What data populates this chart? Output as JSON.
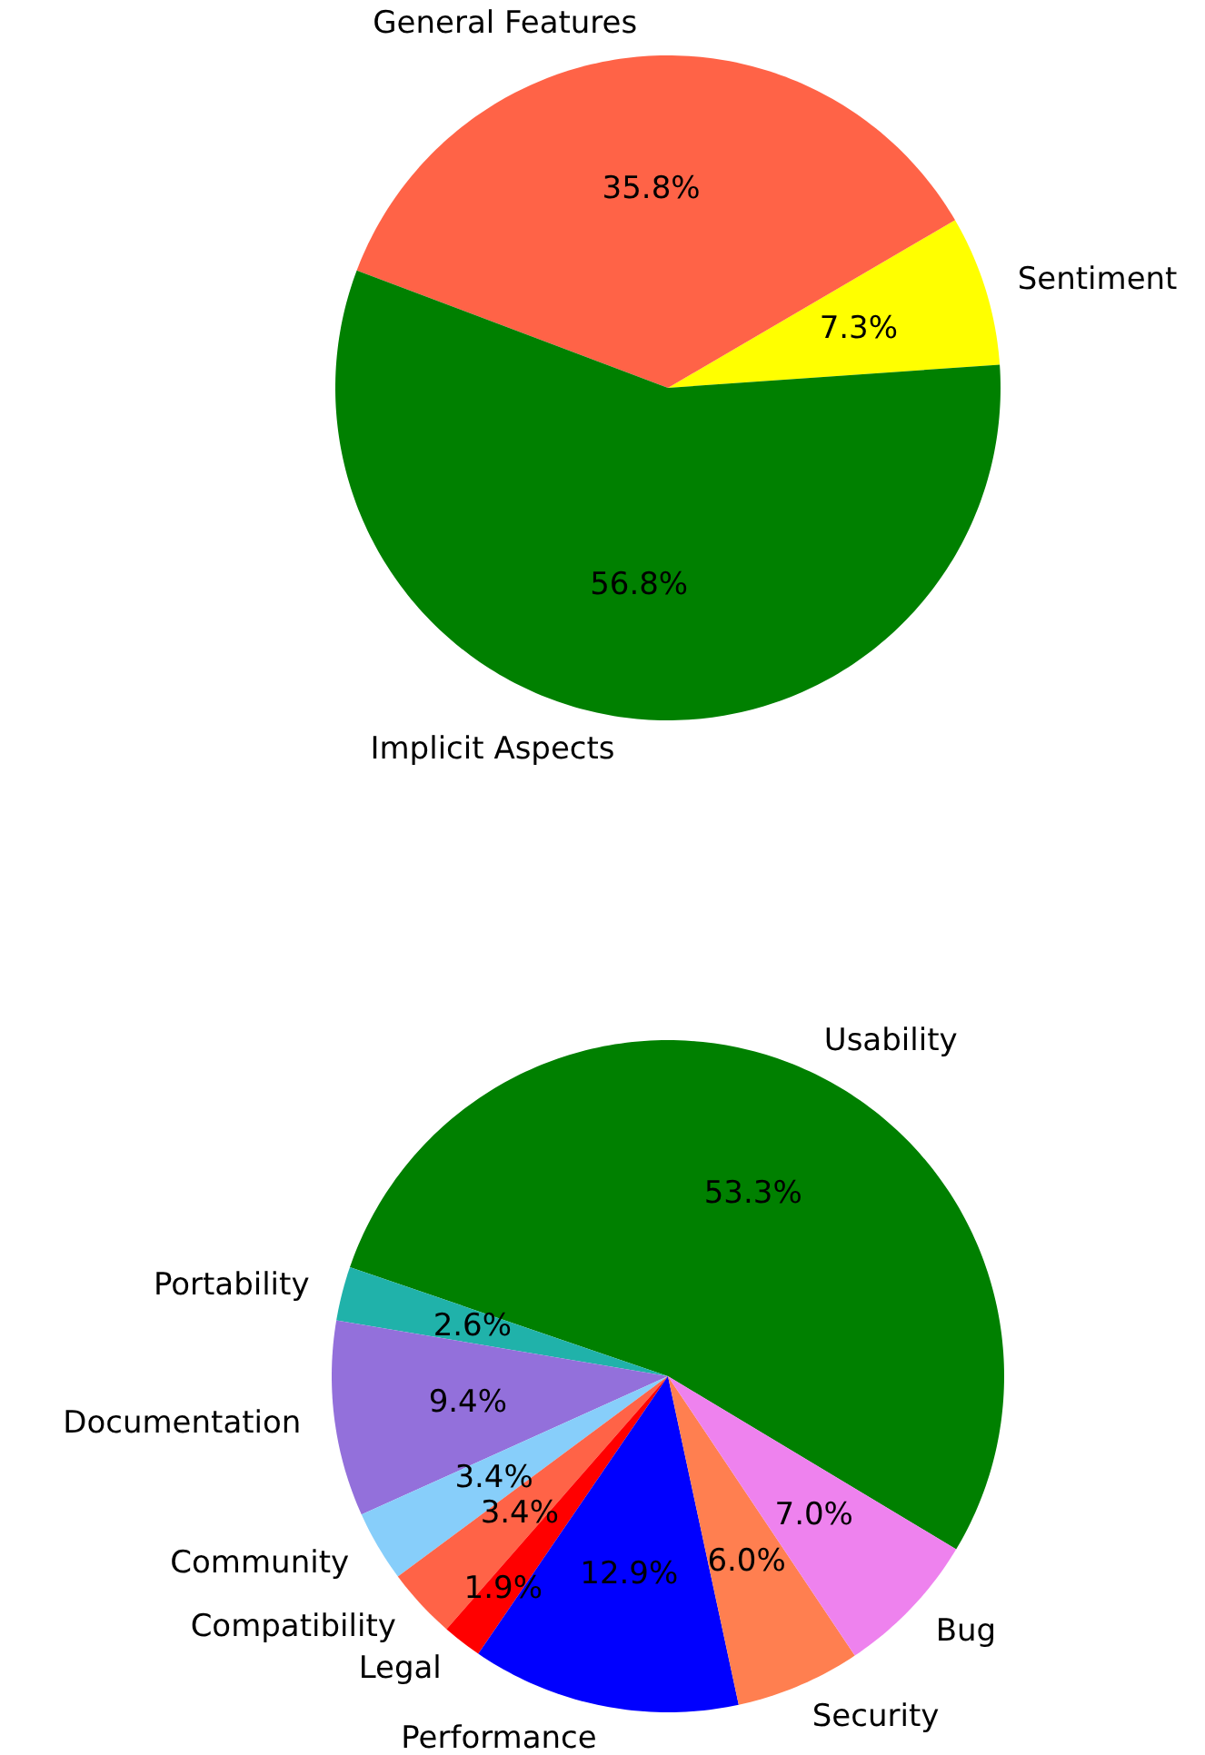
{
  "chart_data": [
    {
      "type": "pie",
      "categories": [
        "Sentiment",
        "General Features",
        "Implicit Aspects"
      ],
      "values": [
        7.3,
        35.8,
        56.8
      ],
      "colors": [
        "#ffff00",
        "#ff6347",
        "#008000"
      ],
      "value_labels": [
        "7.3%",
        "35.8%",
        "56.8%"
      ]
    },
    {
      "type": "pie",
      "categories": [
        "Usability",
        "Portability",
        "Documentation",
        "Community",
        "Compatibility",
        "Legal",
        "Performance",
        "Security",
        "Bug"
      ],
      "values": [
        53.3,
        2.6,
        9.4,
        3.4,
        3.4,
        1.9,
        12.9,
        6.0,
        7.0
      ],
      "colors": [
        "#008000",
        "#20b2aa",
        "#9370db",
        "#87cefa",
        "#ff6347",
        "#ff0000",
        "#0000ff",
        "#ff7f50",
        "#ee82ee"
      ],
      "value_labels": [
        "53.3%",
        "2.6%",
        "9.4%",
        "3.4%",
        "3.4%",
        "1.9%",
        "12.9%",
        "6.0%",
        "7.0%"
      ]
    }
  ]
}
